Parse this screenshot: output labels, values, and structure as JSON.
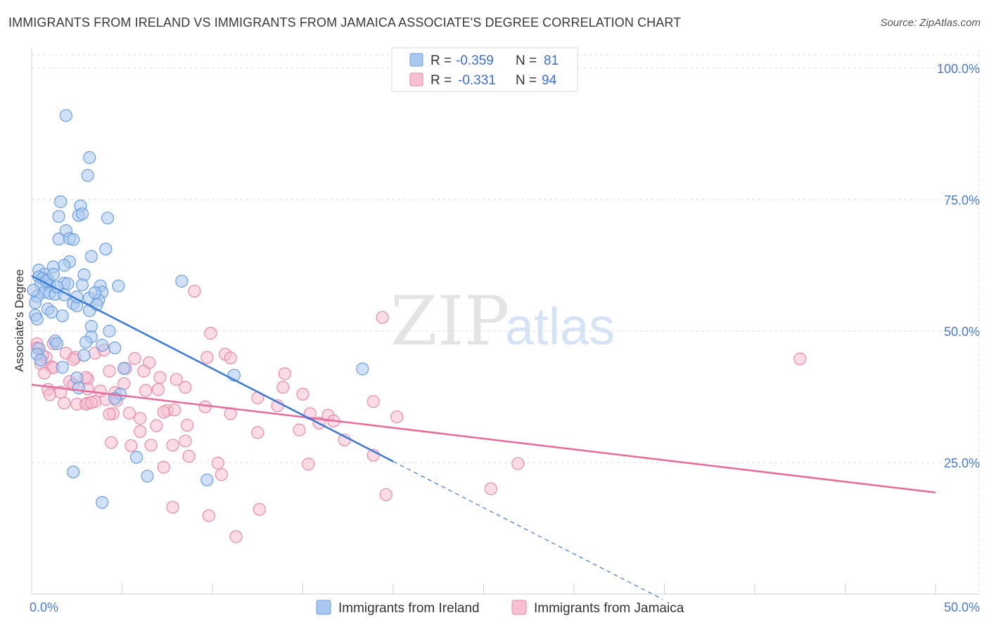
{
  "title": "IMMIGRANTS FROM IRELAND VS IMMIGRANTS FROM JAMAICA ASSOCIATE'S DEGREE CORRELATION CHART",
  "source": "Source: ZipAtlas.com",
  "watermark": {
    "zip": "ZIP",
    "atlas": "atlas"
  },
  "colors": {
    "ireland_fill": "#a9c8f0",
    "ireland_stroke": "#6a9fe0",
    "ireland_line": "#3b7ad8",
    "jamaica_fill": "#f7c0d0",
    "jamaica_stroke": "#ea8aaa",
    "jamaica_line": "#e8699a",
    "axis_text": "#4a7bc8",
    "grid": "#dddddd"
  },
  "legend": {
    "rows": [
      {
        "r_label": "R =",
        "r_value": "-0.359",
        "n_label": "N =",
        "n_value": "81",
        "series": "ireland"
      },
      {
        "r_label": "R =",
        "r_value": "-0.331",
        "n_label": "N =",
        "n_value": "94",
        "series": "jamaica"
      }
    ]
  },
  "chart_data": {
    "type": "scatter",
    "title": "IMMIGRANTS FROM IRELAND VS IMMIGRANTS FROM JAMAICA ASSOCIATE'S DEGREE CORRELATION CHART",
    "xlabel": "",
    "ylabel": "Associate's Degree",
    "xlim": [
      0,
      50
    ],
    "ylim": [
      0,
      102
    ],
    "x_tick_labels": [
      "0.0%",
      "50.0%"
    ],
    "y_ticks": [
      25,
      50,
      75,
      100
    ],
    "y_tick_labels": [
      "25.0%",
      "50.0%",
      "75.0%",
      "100.0%"
    ],
    "legend_position": "bottom-center",
    "series": [
      {
        "name": "Immigrants from Ireland",
        "key": "ireland",
        "points": [
          [
            1.9,
            91.0
          ],
          [
            3.2,
            83.0
          ],
          [
            3.1,
            79.6
          ],
          [
            1.6,
            74.6
          ],
          [
            2.7,
            73.8
          ],
          [
            1.5,
            71.8
          ],
          [
            2.6,
            72.0
          ],
          [
            2.8,
            72.3
          ],
          [
            4.2,
            71.5
          ],
          [
            1.9,
            69.1
          ],
          [
            1.5,
            67.5
          ],
          [
            2.1,
            67.6
          ],
          [
            2.3,
            67.4
          ],
          [
            4.1,
            65.6
          ],
          [
            3.3,
            64.2
          ],
          [
            2.1,
            63.2
          ],
          [
            1.8,
            62.5
          ],
          [
            1.2,
            62.2
          ],
          [
            0.4,
            61.6
          ],
          [
            0.7,
            60.8
          ],
          [
            0.4,
            60.3
          ],
          [
            0.6,
            60.0
          ],
          [
            0.9,
            59.8
          ],
          [
            2.9,
            60.7
          ],
          [
            0.5,
            58.9
          ],
          [
            1.0,
            58.6
          ],
          [
            1.8,
            59.1
          ],
          [
            2.0,
            59.0
          ],
          [
            2.8,
            58.8
          ],
          [
            3.8,
            58.6
          ],
          [
            4.8,
            58.6
          ],
          [
            0.7,
            57.4
          ],
          [
            1.0,
            57.2
          ],
          [
            1.3,
            57.0
          ],
          [
            1.4,
            58.4
          ],
          [
            3.9,
            57.4
          ],
          [
            3.2,
            56.3
          ],
          [
            3.7,
            55.9
          ],
          [
            8.3,
            59.5
          ],
          [
            0.3,
            56.6
          ],
          [
            2.3,
            55.2
          ],
          [
            2.5,
            54.8
          ],
          [
            3.6,
            55.0
          ],
          [
            0.9,
            54.2
          ],
          [
            1.1,
            53.6
          ],
          [
            3.2,
            53.9
          ],
          [
            1.7,
            52.9
          ],
          [
            0.2,
            53.0
          ],
          [
            0.3,
            52.3
          ],
          [
            4.3,
            50.0
          ],
          [
            3.3,
            50.9
          ],
          [
            3.3,
            48.9
          ],
          [
            1.3,
            48.1
          ],
          [
            1.4,
            47.6
          ],
          [
            4.6,
            46.8
          ],
          [
            3.0,
            47.9
          ],
          [
            3.9,
            47.3
          ],
          [
            0.4,
            46.7
          ],
          [
            2.9,
            45.4
          ],
          [
            0.3,
            45.6
          ],
          [
            0.5,
            44.5
          ],
          [
            11.2,
            41.6
          ],
          [
            5.1,
            42.9
          ],
          [
            18.3,
            42.8
          ],
          [
            1.7,
            43.1
          ],
          [
            2.5,
            41.1
          ],
          [
            2.6,
            39.2
          ],
          [
            4.9,
            38.0
          ],
          [
            4.6,
            37.2
          ],
          [
            5.8,
            26.0
          ],
          [
            6.4,
            22.4
          ],
          [
            9.7,
            21.7
          ],
          [
            2.3,
            23.2
          ],
          [
            3.9,
            17.4
          ],
          [
            0.2,
            55.4
          ],
          [
            0.1,
            57.8
          ],
          [
            0.8,
            59.5
          ],
          [
            1.2,
            60.8
          ],
          [
            2.5,
            56.5
          ],
          [
            1.8,
            56.9
          ],
          [
            3.5,
            57.3
          ]
        ],
        "trend_solid": [
          [
            0.0,
            60.5
          ],
          [
            20.0,
            25.2
          ]
        ],
        "trend_dashed": [
          [
            20.0,
            25.2
          ],
          [
            34.9,
            -1.0
          ]
        ]
      },
      {
        "name": "Immigrants from Jamaica",
        "key": "jamaica",
        "points": [
          [
            9.0,
            57.6
          ],
          [
            19.4,
            52.6
          ],
          [
            9.9,
            49.6
          ],
          [
            0.3,
            47.6
          ],
          [
            0.3,
            46.8
          ],
          [
            1.2,
            47.6
          ],
          [
            0.8,
            45.0
          ],
          [
            0.6,
            45.4
          ],
          [
            1.9,
            45.8
          ],
          [
            3.5,
            45.8
          ],
          [
            4.0,
            46.4
          ],
          [
            2.4,
            45.0
          ],
          [
            2.3,
            44.6
          ],
          [
            0.5,
            43.8
          ],
          [
            1.1,
            43.2
          ],
          [
            1.2,
            43.0
          ],
          [
            5.2,
            42.9
          ],
          [
            5.7,
            44.8
          ],
          [
            6.5,
            44.0
          ],
          [
            9.7,
            45.0
          ],
          [
            10.7,
            45.6
          ],
          [
            11.0,
            44.9
          ],
          [
            42.5,
            44.7
          ],
          [
            0.7,
            42.0
          ],
          [
            4.3,
            42.4
          ],
          [
            6.2,
            42.4
          ],
          [
            14.0,
            41.9
          ],
          [
            7.1,
            41.2
          ],
          [
            8.0,
            40.8
          ],
          [
            2.1,
            40.4
          ],
          [
            3.1,
            40.9
          ],
          [
            5.1,
            40.0
          ],
          [
            2.3,
            39.8
          ],
          [
            0.9,
            38.9
          ],
          [
            1.6,
            38.4
          ],
          [
            3.1,
            39.0
          ],
          [
            3.8,
            38.6
          ],
          [
            8.5,
            39.3
          ],
          [
            6.3,
            38.7
          ],
          [
            7.0,
            38.9
          ],
          [
            13.9,
            39.3
          ],
          [
            4.6,
            38.3
          ],
          [
            15.0,
            38.0
          ],
          [
            12.5,
            37.3
          ],
          [
            18.9,
            36.6
          ],
          [
            2.5,
            36.1
          ],
          [
            3.1,
            36.3
          ],
          [
            3.5,
            36.6
          ],
          [
            4.1,
            37.0
          ],
          [
            1.8,
            36.3
          ],
          [
            3.0,
            36.1
          ],
          [
            1.0,
            37.9
          ],
          [
            3.3,
            36.4
          ],
          [
            4.7,
            36.8
          ],
          [
            7.5,
            34.9
          ],
          [
            7.9,
            35.0
          ],
          [
            9.6,
            35.6
          ],
          [
            13.6,
            35.8
          ],
          [
            4.5,
            34.3
          ],
          [
            5.4,
            34.4
          ],
          [
            7.3,
            34.6
          ],
          [
            11.0,
            34.3
          ],
          [
            15.4,
            34.3
          ],
          [
            4.3,
            34.2
          ],
          [
            16.4,
            34.0
          ],
          [
            20.2,
            33.7
          ],
          [
            6.0,
            33.4
          ],
          [
            6.9,
            32.0
          ],
          [
            8.6,
            32.1
          ],
          [
            15.9,
            32.5
          ],
          [
            16.7,
            32.9
          ],
          [
            6.0,
            30.9
          ],
          [
            12.5,
            30.7
          ],
          [
            17.3,
            29.3
          ],
          [
            8.5,
            29.1
          ],
          [
            4.4,
            28.8
          ],
          [
            6.6,
            28.3
          ],
          [
            5.5,
            28.2
          ],
          [
            7.8,
            28.3
          ],
          [
            8.7,
            26.2
          ],
          [
            18.9,
            26.4
          ],
          [
            15.3,
            24.7
          ],
          [
            10.3,
            24.9
          ],
          [
            10.5,
            22.7
          ],
          [
            7.3,
            24.1
          ],
          [
            26.9,
            24.8
          ],
          [
            25.4,
            20.0
          ],
          [
            19.6,
            18.9
          ],
          [
            7.8,
            16.5
          ],
          [
            12.6,
            16.1
          ],
          [
            9.8,
            14.9
          ],
          [
            11.3,
            10.9
          ],
          [
            14.8,
            31.2
          ],
          [
            3.0,
            41.2
          ]
        ],
        "trend_solid": [
          [
            0.0,
            39.8
          ],
          [
            50.0,
            19.3
          ]
        ]
      }
    ]
  },
  "bottom_legend": [
    {
      "label": "Immigrants from Ireland",
      "series": "ireland"
    },
    {
      "label": "Immigrants from Jamaica",
      "series": "jamaica"
    }
  ]
}
